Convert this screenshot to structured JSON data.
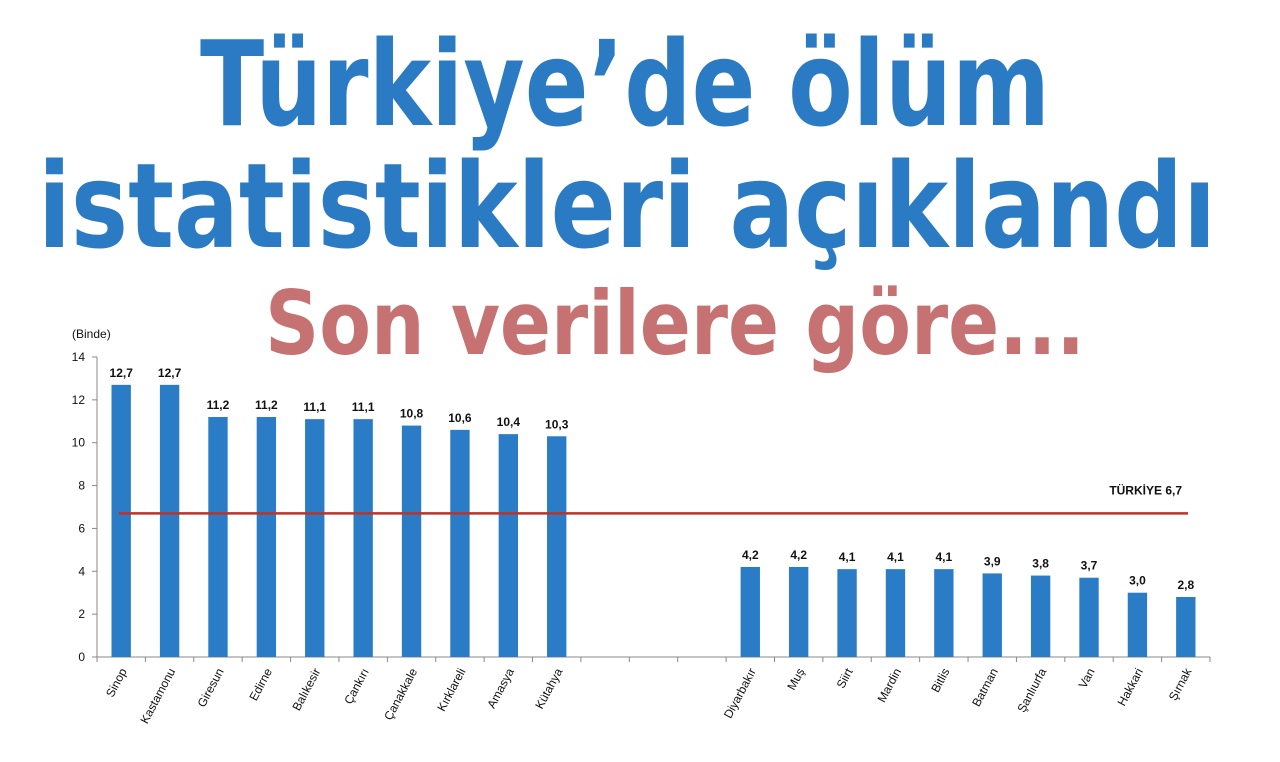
{
  "header": {
    "title_lines": [
      "Türkiye’de ölüm",
      "istatistikleri açıklandı"
    ],
    "subtitle": "Son verilere göre..."
  },
  "chart_data": {
    "type": "bar",
    "y_label": "(Binde)",
    "categories": [
      "Sinop",
      "Kastamonu",
      "Giresun",
      "Edirne",
      "Balıkesir",
      "Çankırı",
      "Çanakkale",
      "Kırklareli",
      "Amasya",
      "Kütahya",
      null,
      null,
      null,
      "Diyarbakır",
      "Muş",
      "Siirt",
      "Mardin",
      "Bitlis",
      "Batman",
      "Şanlıurfa",
      "Van",
      "Hakkari",
      "Şırnak"
    ],
    "values": [
      12.7,
      12.7,
      11.2,
      11.2,
      11.1,
      11.1,
      10.8,
      10.6,
      10.4,
      10.3,
      null,
      null,
      null,
      4.2,
      4.2,
      4.1,
      4.1,
      4.1,
      3.9,
      3.8,
      3.7,
      3.0,
      2.8
    ],
    "value_labels": [
      "12,7",
      "12,7",
      "11,2",
      "11,2",
      "11,1",
      "11,1",
      "10,8",
      "10,6",
      "10,4",
      "10,3",
      null,
      null,
      null,
      "4,2",
      "4,2",
      "4,1",
      "4,1",
      "4,1",
      "3,9",
      "3,8",
      "3,7",
      "3,0",
      "2,8"
    ],
    "color": "#2a7cc7",
    "ylim": [
      0,
      14
    ],
    "yticks": [
      0,
      2,
      4,
      6,
      8,
      10,
      12,
      14
    ],
    "reference_line": {
      "value": 6.7,
      "label": "TÜRKİYE 6,7",
      "color": "#c0302a"
    }
  }
}
